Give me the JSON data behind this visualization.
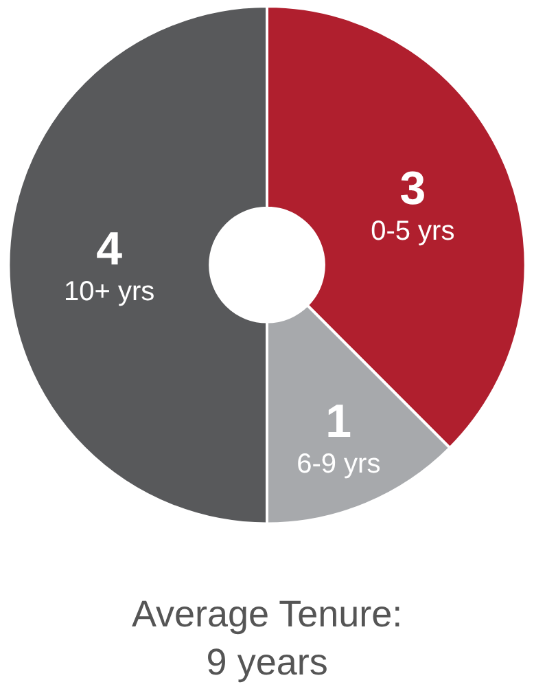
{
  "chart_data": {
    "type": "donut",
    "categories": [
      "0-5 yrs",
      "6-9 yrs",
      "10+ yrs"
    ],
    "values": [
      3,
      1,
      4
    ],
    "colors": [
      "#b01f2e",
      "#a7a9ac",
      "#58595b"
    ],
    "data_labels": true,
    "legend": false,
    "annotations": [
      "Average Tenure:\n9 years"
    ]
  }
}
